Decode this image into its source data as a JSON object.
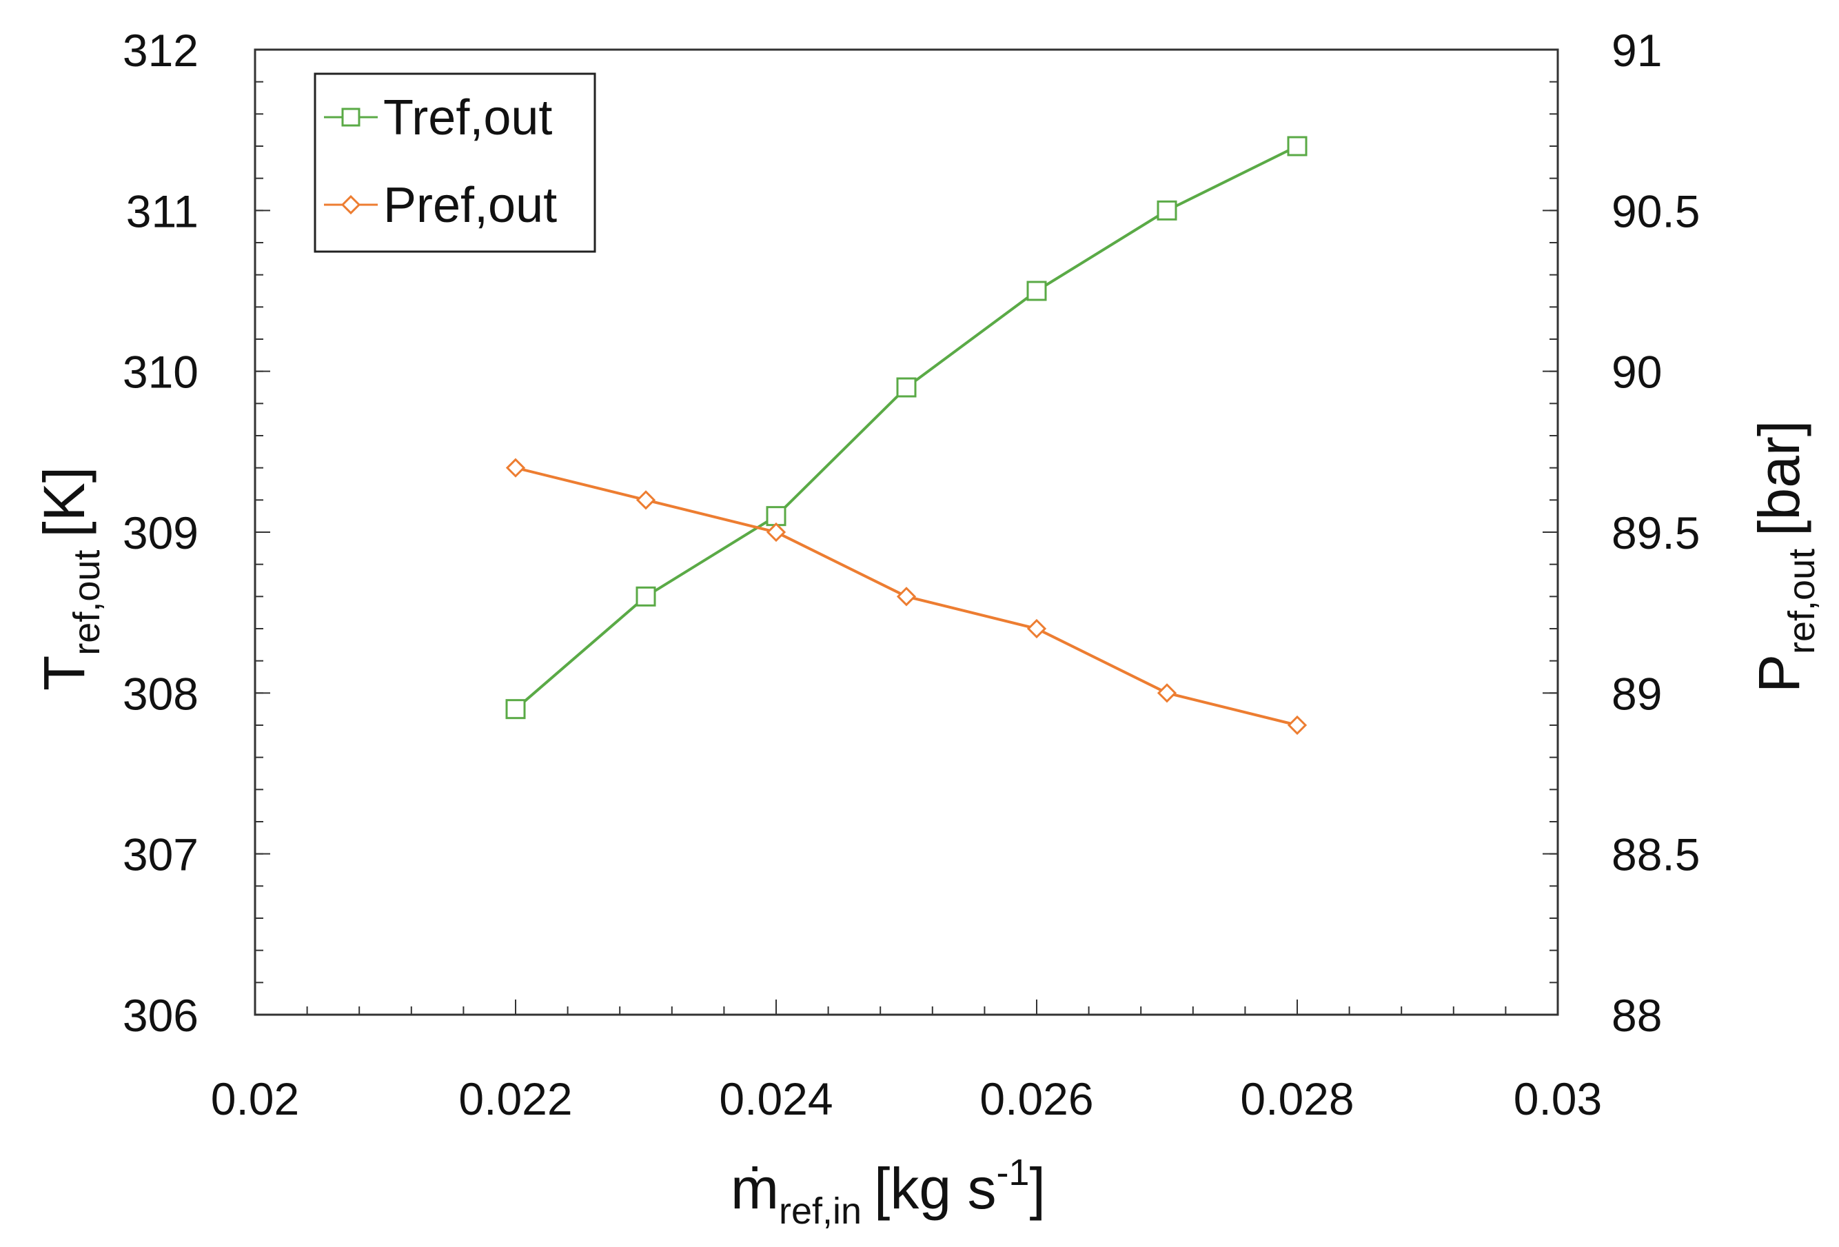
{
  "chart_data": {
    "type": "line",
    "x": [
      0.022,
      0.023,
      0.024,
      0.025,
      0.026,
      0.027,
      0.028
    ],
    "series": [
      {
        "name": "Tref,out",
        "axis": "left",
        "color": "#5aaa46",
        "marker": "square",
        "values": [
          307.9,
          308.6,
          309.1,
          309.9,
          310.5,
          311.0,
          311.4
        ]
      },
      {
        "name": "Pref,out",
        "axis": "right",
        "color": "#ed7d31",
        "marker": "diamond",
        "values": [
          89.7,
          89.6,
          89.5,
          89.3,
          89.2,
          89.0,
          88.9
        ]
      }
    ],
    "xlim": [
      0.02,
      0.03
    ],
    "ylim_left": [
      306,
      312
    ],
    "ylim_right": [
      88,
      91
    ],
    "x_ticks": [
      "0.02",
      "0.022",
      "0.024",
      "0.026",
      "0.028",
      "0.03"
    ],
    "x_tick_values": [
      0.02,
      0.022,
      0.024,
      0.026,
      0.028,
      0.03
    ],
    "y_left_ticks": [
      "306",
      "307",
      "308",
      "309",
      "310",
      "311",
      "312"
    ],
    "y_left_tick_values": [
      306,
      307,
      308,
      309,
      310,
      311,
      312
    ],
    "y_right_ticks": [
      "88",
      "88.5",
      "89",
      "89.5",
      "90",
      "90.5",
      "91"
    ],
    "y_right_tick_values": [
      88,
      88.5,
      89,
      89.5,
      90,
      90.5,
      91
    ],
    "xlabel": {
      "main": "ṁ",
      "sub": "ref,in",
      "unit": "[kg s",
      "sup": "-1",
      "close": "]"
    },
    "ylabel_left": {
      "main": "T",
      "sub": "ref,out",
      "unit": "[K]"
    },
    "ylabel_right": {
      "main": "P",
      "sub": "ref,out",
      "unit": "[bar]"
    },
    "legend": {
      "position": "top-left",
      "entries": [
        "Tref,out",
        "Pref,out"
      ]
    },
    "grid": false
  }
}
